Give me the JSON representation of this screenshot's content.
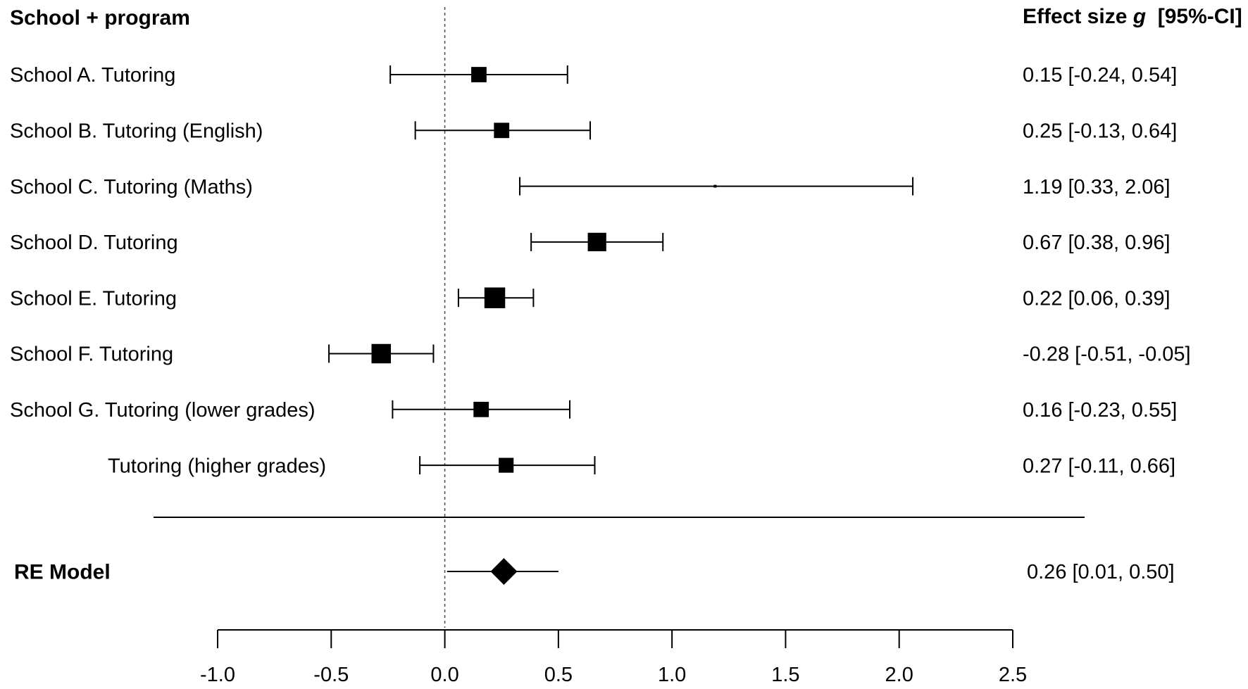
{
  "chart_data": {
    "type": "forest",
    "header_left": "School + program",
    "header_right": {
      "prefix": "Effect size ",
      "symbol": "g",
      "suffix": "  [95%-CI]"
    },
    "studies": [
      {
        "label": "School A. Tutoring",
        "estimate": 0.15,
        "ci_low": -0.24,
        "ci_high": 0.54,
        "ci_text": "0.15 [-0.24, 0.54]",
        "weight": 0.68
      },
      {
        "label": "School B. Tutoring  (English)",
        "estimate": 0.25,
        "ci_low": -0.13,
        "ci_high": 0.64,
        "ci_text": "0.25 [-0.13, 0.64]",
        "weight": 0.68
      },
      {
        "label": "School C. Tutoring  (Maths)",
        "estimate": 1.19,
        "ci_low": 0.33,
        "ci_high": 2.06,
        "ci_text": "1.19 [0.33, 2.06]",
        "weight": 0.08
      },
      {
        "label": "School D. Tutoring",
        "estimate": 0.67,
        "ci_low": 0.38,
        "ci_high": 0.96,
        "ci_text": "0.67 [0.38, 0.96]",
        "weight": 0.82
      },
      {
        "label": "School E. Tutoring",
        "estimate": 0.22,
        "ci_low": 0.06,
        "ci_high": 0.39,
        "ci_text": "0.22 [0.06, 0.39]",
        "weight": 0.92
      },
      {
        "label": "School F. Tutoring",
        "estimate": -0.28,
        "ci_low": -0.51,
        "ci_high": -0.05,
        "ci_text": "-0.28  [-0.51, -0.05]",
        "weight": 0.86
      },
      {
        "label": "School G. Tutoring  (lower grades)",
        "estimate": 0.16,
        "ci_low": -0.23,
        "ci_high": 0.55,
        "ci_text": "0.16 [-0.23, 0.55]",
        "weight": 0.68
      },
      {
        "label": "Tutoring  (higher grades)",
        "estimate": 0.27,
        "ci_low": -0.11,
        "ci_high": 0.66,
        "ci_text": "0.27 [-0.11, 0.66]",
        "weight": 0.66,
        "indented": true
      }
    ],
    "summary": {
      "label": "RE Model",
      "estimate": 0.26,
      "ci_low": 0.01,
      "ci_high": 0.5,
      "ci_text": "0.26 [0.01, 0.50]"
    },
    "x_axis": {
      "range": [
        -1.0,
        2.5
      ],
      "ticks": [
        -1.0,
        -0.5,
        0.0,
        0.5,
        1.0,
        1.5,
        2.0,
        2.5
      ],
      "tick_labels": [
        "-1.0",
        "-0.5",
        "0.0",
        "0.5",
        "1.0",
        "1.5",
        "2.0",
        "2.5"
      ],
      "reference_line": 0.0
    }
  }
}
